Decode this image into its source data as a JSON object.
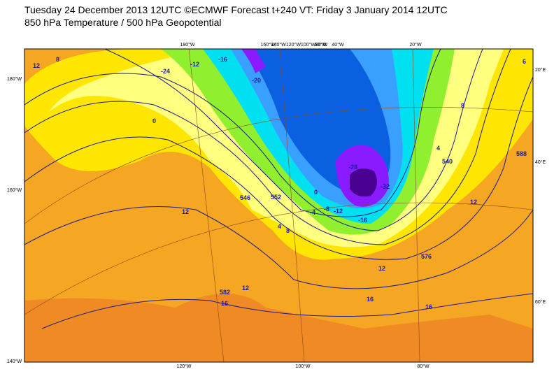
{
  "header": {
    "line1": "Tuesday 24 December 2013 12UTC ©ECMWF Forecast t+240 VT: Friday 3 January 2014 12UTC",
    "line2": "850 hPa Temperature / 500 hPa Geopotential"
  },
  "map": {
    "top_labels": [
      "180°W",
      "160°W",
      "140°W120°W100°W80°W",
      "60°W",
      "40°W",
      "20°W"
    ],
    "bottom_labels": [
      "120°W",
      "100°W",
      "80°W"
    ],
    "left_labels": [
      "180°W",
      "160°W",
      "140°W"
    ],
    "right_labels": [
      "20°E",
      "40°E",
      "60°E"
    ],
    "contour_labels": [
      "12",
      "8",
      "0",
      "-24",
      "-12",
      "-16",
      "-20",
      "-28",
      "-32",
      "-16",
      "-12",
      "-8",
      "-4",
      "0",
      "4",
      "8",
      "12",
      "12",
      "16",
      "12",
      "16",
      "16",
      "12",
      "8",
      "4",
      "540",
      "576",
      "582",
      "588",
      "6",
      "552",
      "546"
    ]
  }
}
